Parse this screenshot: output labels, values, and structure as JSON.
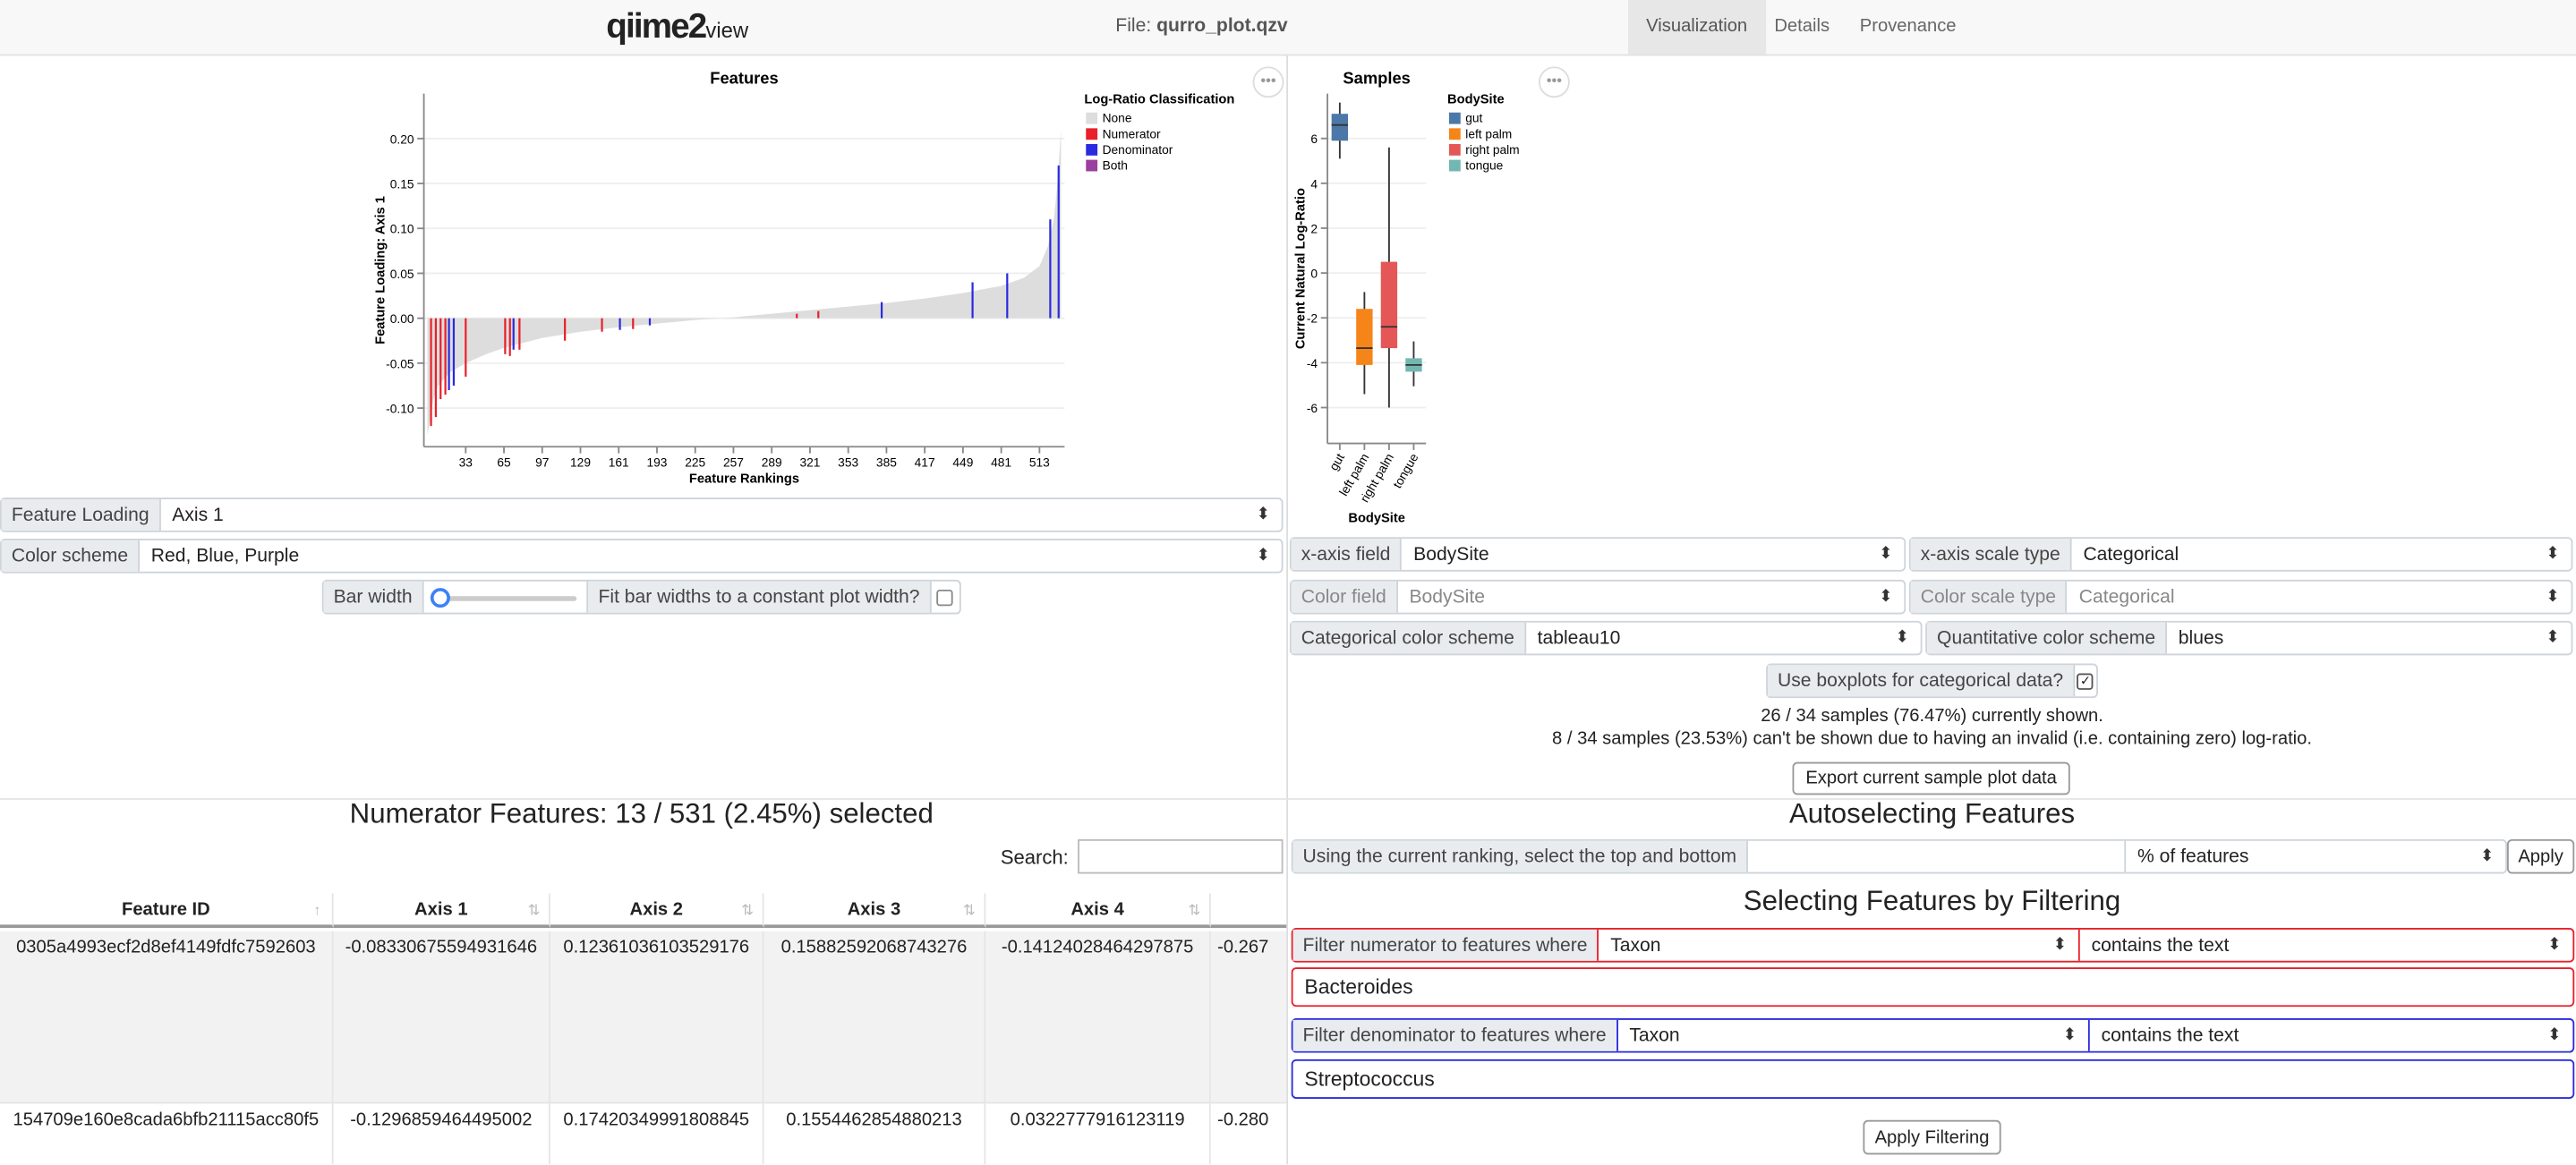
{
  "header": {
    "logo": "qiime2",
    "logo_suffix": "view",
    "file_label": "File:",
    "file_name": "qurro_plot.qzv",
    "tabs": [
      "Visualization",
      "Details",
      "Provenance"
    ]
  },
  "chart_data": [
    {
      "type": "bar",
      "title": "Features",
      "x_label": "Feature Rankings",
      "y_label": "Feature Loading: Axis 1",
      "legend_title": "Log-Ratio Classification",
      "xlim": [
        -2,
        534
      ],
      "xticks": [
        33,
        65,
        97,
        129,
        161,
        193,
        225,
        257,
        289,
        321,
        353,
        385,
        417,
        449,
        481,
        513
      ],
      "ylim": [
        -0.143,
        0.25
      ],
      "yticks": [
        {
          "value": -0.1,
          "label": "-0.10"
        },
        {
          "value": -0.05,
          "label": "-0.05"
        },
        {
          "value": 0,
          "label": "0.00"
        },
        {
          "value": 0.05,
          "label": "0.05"
        },
        {
          "value": 0.1,
          "label": "0.10"
        },
        {
          "value": 0.15,
          "label": "0.15"
        },
        {
          "value": 0.2,
          "label": "0.20"
        }
      ],
      "grid": true,
      "series": [
        {
          "name": "None",
          "color": "#dddddd",
          "mark": "area",
          "x": [
            1,
            3,
            6,
            10,
            20,
            33,
            50,
            65,
            97,
            129,
            161,
            193,
            225,
            257,
            289,
            321,
            353,
            385,
            417,
            449,
            481,
            500,
            513,
            520,
            525,
            528,
            531
          ],
          "values": [
            -0.13,
            -0.115,
            -0.09,
            -0.075,
            -0.06,
            -0.05,
            -0.04,
            -0.033,
            -0.022,
            -0.015,
            -0.01,
            -0.006,
            -0.002,
            0.001,
            0.005,
            0.009,
            0.013,
            0.017,
            0.022,
            0.028,
            0.036,
            0.045,
            0.058,
            0.08,
            0.11,
            0.15,
            0.21
          ]
        },
        {
          "name": "Numerator",
          "color": "#e8202a",
          "x": [
            4,
            8,
            12,
            16,
            33,
            66,
            70,
            78,
            116,
            147,
            173,
            310,
            328
          ],
          "values": [
            -0.12,
            -0.11,
            -0.09,
            -0.085,
            -0.065,
            -0.04,
            -0.042,
            -0.035,
            -0.025,
            -0.015,
            -0.012,
            0.005,
            0.008
          ]
        },
        {
          "name": "Denominator",
          "color": "#2a2ae0",
          "x": [
            19,
            23,
            73,
            162,
            187,
            381,
            457,
            486,
            522,
            529
          ],
          "values": [
            -0.08,
            -0.075,
            -0.035,
            -0.013,
            -0.008,
            0.018,
            0.04,
            0.05,
            0.11,
            0.17
          ]
        },
        {
          "name": "Both",
          "color": "#9b3fa0",
          "x": [],
          "values": []
        }
      ]
    },
    {
      "type": "box",
      "title": "Samples",
      "x_label": "BodySite",
      "y_label": "Current Natural Log-Ratio",
      "legend_title": "BodySite",
      "categories": [
        "gut",
        "left palm",
        "right palm",
        "tongue"
      ],
      "colors": [
        "#4c78a8",
        "#f58518",
        "#e45756",
        "#72b7b2"
      ],
      "ylim": [
        -7.6,
        8
      ],
      "yticks": [
        -6,
        -4,
        -2,
        0,
        2,
        4,
        6
      ],
      "grid": true,
      "boxes": [
        {
          "min": 5.1,
          "q1": 5.9,
          "median": 6.6,
          "q3": 7.1,
          "max": 7.6
        },
        {
          "min": -5.4,
          "q1": -4.1,
          "median": -3.35,
          "q3": -1.6,
          "max": -0.85
        },
        {
          "min": -6.0,
          "q1": -3.35,
          "median": -2.4,
          "q3": 0.5,
          "max": 5.6
        },
        {
          "min": -5.05,
          "q1": -4.4,
          "median": -4.1,
          "q3": -3.8,
          "max": -3.05
        }
      ]
    }
  ],
  "feature_controls": {
    "loading_label": "Feature Loading",
    "loading_value": "Axis 1",
    "scheme_label": "Color scheme",
    "scheme_value": "Red, Blue, Purple",
    "bar_width_label": "Bar width",
    "fit_label": "Fit bar widths to a constant plot width?"
  },
  "sample_controls": {
    "x_field_label": "x-axis field",
    "x_field": "BodySite",
    "x_scale_label": "x-axis scale type",
    "x_scale": "Categorical",
    "color_field_label": "Color field",
    "color_field": "BodySite",
    "color_scale_label": "Color scale type",
    "color_scale": "Categorical",
    "cat_scheme_label": "Categorical color scheme",
    "cat_scheme": "tableau10",
    "quant_scheme_label": "Quantitative color scheme",
    "quant_scheme": "blues",
    "boxplot_label": "Use boxplots for categorical data?",
    "shown_text": "26 / 34 samples (76.47%) currently shown.",
    "hidden_text": "8 / 34 samples (23.53%) can't be shown due to having an invalid (i.e. containing zero) log-ratio.",
    "export_button": "Export current sample plot data"
  },
  "numerator_table": {
    "title": "Numerator Features: 13 / 531 (2.45%) selected",
    "search_label": "Search:",
    "columns": [
      "Feature ID",
      "Axis 1",
      "Axis 2",
      "Axis 3",
      "Axis 4"
    ],
    "rows": [
      [
        "0305a4993ecf2d8ef4149fdfc7592603",
        "-0.08330675594931646",
        "0.12361036103529176",
        "0.15882592068743276",
        "-0.14124028464297875",
        "-0.267"
      ],
      [
        "154709e160e8cada6bfb21115acc80f5",
        "-0.1296859464495002",
        "0.17420349991808845",
        "0.1554462854880213",
        "0.0322777916123119",
        "-0.280"
      ]
    ]
  },
  "autoselect": {
    "title": "Autoselecting Features",
    "label": "Using the current ranking, select the top and bottom",
    "unit": "% of features",
    "button": "Apply"
  },
  "filtering": {
    "title": "Selecting Features by Filtering",
    "numerator_label": "Filter numerator to features where",
    "numerator_field": "Taxon",
    "numerator_op": "contains the text",
    "numerator_text": "Bacteroides",
    "denominator_label": "Filter denominator to features where",
    "denominator_field": "Taxon",
    "denominator_op": "contains the text",
    "denominator_text": "Streptococcus",
    "button": "Apply Filtering"
  }
}
